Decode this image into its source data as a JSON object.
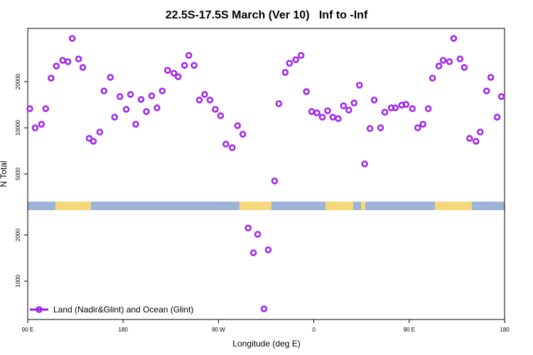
{
  "chart_data": {
    "type": "scatter",
    "title": "22.5S-17.5S March (Ver 10)   Inf to -Inf",
    "x_label": "Longitude (deg E)",
    "y_label": "N Total",
    "log_y": true,
    "legend": "bottom-left",
    "xlim": [
      90,
      540
    ],
    "xticks": [
      {
        "value": 90,
        "label": "90 E"
      },
      {
        "value": 180,
        "label": "180"
      },
      {
        "value": 270,
        "label": "90 W"
      },
      {
        "value": 360,
        "label": "0"
      },
      {
        "value": 450,
        "label": "90 E"
      },
      {
        "value": 540,
        "label": "180"
      }
    ],
    "ylim": [
      562,
      44500
    ],
    "yticks": [
      1000,
      2000,
      5000,
      10000,
      20000
    ],
    "series": [
      {
        "name": "Land (Nadir&Glint) and Ocean (Glint)",
        "color": "#a020f0",
        "x": [
          92,
          97,
          103,
          107,
          112,
          117,
          123,
          128,
          132,
          138,
          142,
          148,
          152,
          158,
          162,
          168,
          172,
          177,
          183,
          187,
          192,
          197,
          202,
          207,
          212,
          217,
          222,
          228,
          232,
          238,
          242,
          247,
          252,
          257,
          262,
          267,
          272,
          277,
          283,
          288,
          293,
          298,
          303,
          307,
          313,
          317,
          323,
          327,
          333,
          337,
          343,
          348,
          353,
          358,
          363,
          368,
          373,
          378,
          383,
          388,
          393,
          398,
          403,
          408,
          413,
          417,
          423,
          427,
          433,
          437,
          443,
          447,
          453,
          458,
          463,
          468,
          472,
          478,
          482,
          488,
          492,
          498,
          502,
          507,
          513,
          517,
          523,
          527,
          533,
          537
        ],
        "values": [
          13340,
          10000,
          10550,
          13340,
          21090,
          25280,
          27540,
          26980,
          38300,
          28130,
          24760,
          8530,
          8170,
          9380,
          17400,
          21320,
          11730,
          15990,
          13190,
          16500,
          10550,
          15310,
          12770,
          16150,
          13490,
          17400,
          23710,
          22700,
          21530,
          25540,
          29680,
          25540,
          15170,
          16500,
          15170,
          13190,
          11990,
          7830,
          7420,
          10320,
          9080,
          2220,
          1530,
          2020,
          660,
          1600,
          4500,
          14370,
          22970,
          26390,
          27810,
          29680,
          17220,
          12770,
          12510,
          11730,
          12910,
          11730,
          11490,
          13920,
          13050,
          14520,
          18960,
          5810,
          9890,
          15170,
          10000,
          12640,
          13490,
          13490,
          14060,
          14220,
          13340,
          10000,
          10550,
          13340,
          21090,
          25280,
          27540,
          26980,
          38300,
          28130,
          24760,
          8530,
          8170,
          9380,
          17400,
          21320,
          11730,
          15990
        ]
      }
    ]
  }
}
